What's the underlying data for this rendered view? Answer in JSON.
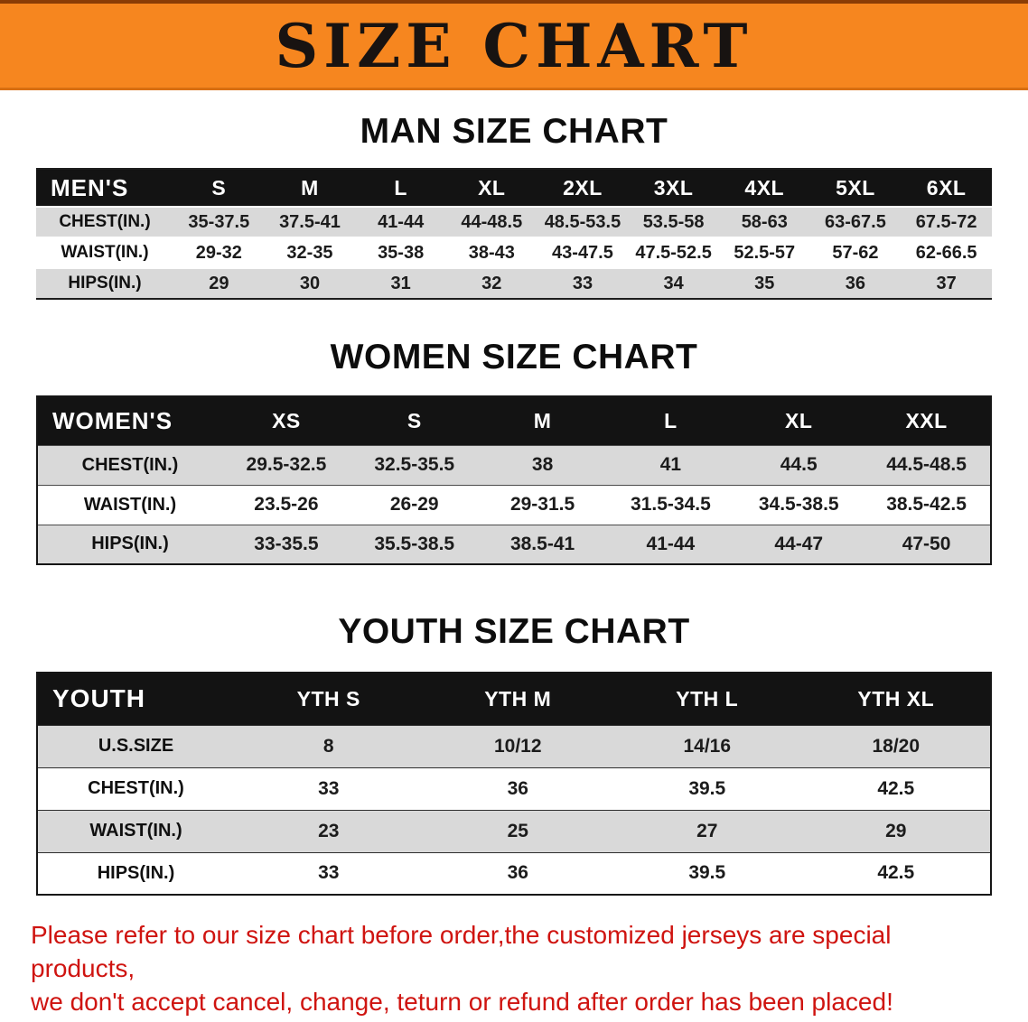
{
  "banner": {
    "title": "SIZE CHART",
    "bg_color": "#F6861F",
    "text_color": "#181311"
  },
  "men": {
    "heading": "MAN SIZE CHART",
    "table": {
      "header": [
        "MEN'S",
        "S",
        "M",
        "L",
        "XL",
        "2XL",
        "3XL",
        "4XL",
        "5XL",
        "6XL"
      ],
      "rows": [
        [
          "CHEST(IN.)",
          "35-37.5",
          "37.5-41",
          "41-44",
          "44-48.5",
          "48.5-53.5",
          "53.5-58",
          "58-63",
          "63-67.5",
          "67.5-72"
        ],
        [
          "WAIST(IN.)",
          "29-32",
          "32-35",
          "35-38",
          "38-43",
          "43-47.5",
          "47.5-52.5",
          "52.5-57",
          "57-62",
          "62-66.5"
        ],
        [
          "HIPS(IN.)",
          "29",
          "30",
          "31",
          "32",
          "33",
          "34",
          "35",
          "36",
          "37"
        ]
      ]
    }
  },
  "women": {
    "heading": "WOMEN SIZE CHART",
    "table": {
      "header": [
        "WOMEN'S",
        "XS",
        "S",
        "M",
        "L",
        "XL",
        "XXL"
      ],
      "rows": [
        [
          "CHEST(IN.)",
          "29.5-32.5",
          "32.5-35.5",
          "38",
          "41",
          "44.5",
          "44.5-48.5"
        ],
        [
          "WAIST(IN.)",
          "23.5-26",
          "26-29",
          "29-31.5",
          "31.5-34.5",
          "34.5-38.5",
          "38.5-42.5"
        ],
        [
          "HIPS(IN.)",
          "33-35.5",
          "35.5-38.5",
          "38.5-41",
          "41-44",
          "44-47",
          "47-50"
        ]
      ]
    }
  },
  "youth": {
    "heading": "YOUTH SIZE CHART",
    "table": {
      "header": [
        "YOUTH",
        "YTH S",
        "YTH M",
        "YTH L",
        "YTH XL"
      ],
      "rows": [
        [
          "U.S.SIZE",
          "8",
          "10/12",
          "14/16",
          "18/20"
        ],
        [
          "CHEST(IN.)",
          "33",
          "36",
          "39.5",
          "42.5"
        ],
        [
          "WAIST(IN.)",
          "23",
          "25",
          "27",
          "29"
        ],
        [
          "HIPS(IN.)",
          "33",
          "36",
          "39.5",
          "42.5"
        ]
      ]
    }
  },
  "disclaimer": {
    "color": "#CF1410",
    "lines": [
      "Please refer to our size chart before order,the customized jerseys are special products,",
      "we don't accept cancel, change, teturn or refund after order has been placed!"
    ]
  }
}
